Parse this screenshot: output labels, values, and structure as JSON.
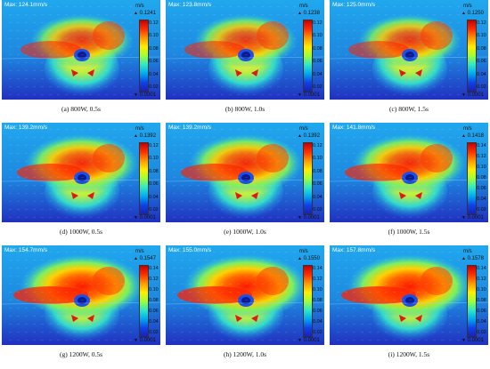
{
  "unit": "m/s",
  "min_label": "0.0001",
  "panels": [
    {
      "max": "Max: 124.1mm/s",
      "cb_max": "0.1241",
      "ticks": [
        "0.12",
        "0.10",
        "0.08",
        "0.06",
        "0.04",
        "0.02"
      ],
      "caption": "(a) 800W, 0.5s"
    },
    {
      "max": "Max: 123.8mm/s",
      "cb_max": "0.1238",
      "ticks": [
        "0.12",
        "0.10",
        "0.08",
        "0.06",
        "0.04",
        "0.02"
      ],
      "caption": "(b) 800W, 1.0s"
    },
    {
      "max": "Max: 125.0mm/s",
      "cb_max": "0.1250",
      "ticks": [
        "0.12",
        "0.10",
        "0.08",
        "0.06",
        "0.04",
        "0.02"
      ],
      "caption": "(c) 800W, 1.5s"
    },
    {
      "max": "Max: 139.2mm/s",
      "cb_max": "0.1392",
      "ticks": [
        "0.12",
        "0.10",
        "0.08",
        "0.06",
        "0.04",
        "0.02"
      ],
      "caption": "(d) 1000W, 0.5s"
    },
    {
      "max": "Max: 139.2mm/s",
      "cb_max": "0.1392",
      "ticks": [
        "0.12",
        "0.10",
        "0.08",
        "0.06",
        "0.04",
        "0.02"
      ],
      "caption": "(e) 1000W, 1.0s"
    },
    {
      "max": "Max: 141.8mm/s",
      "cb_max": "0.1418",
      "ticks": [
        "0.14",
        "0.12",
        "0.10",
        "0.08",
        "0.06",
        "0.04",
        "0.02"
      ],
      "caption": "(f) 1000W, 1.5s"
    },
    {
      "max": "Max: 154.7mm/s",
      "cb_max": "0.1547",
      "ticks": [
        "0.14",
        "0.12",
        "0.10",
        "0.08",
        "0.06",
        "0.04",
        "0.02"
      ],
      "caption": "(g) 1200W, 0.5s"
    },
    {
      "max": "Max: 155.0mm/s",
      "cb_max": "0.1550",
      "ticks": [
        "0.14",
        "0.12",
        "0.10",
        "0.08",
        "0.06",
        "0.04",
        "0.02"
      ],
      "caption": "(h) 1200W, 1.0s"
    },
    {
      "max": "Max: 157.8mm/s",
      "cb_max": "0.1578",
      "ticks": [
        "0.14",
        "0.12",
        "0.10",
        "0.08",
        "0.06",
        "0.04",
        "0.02"
      ],
      "caption": "(i) 1200W, 1.5s"
    }
  ]
}
